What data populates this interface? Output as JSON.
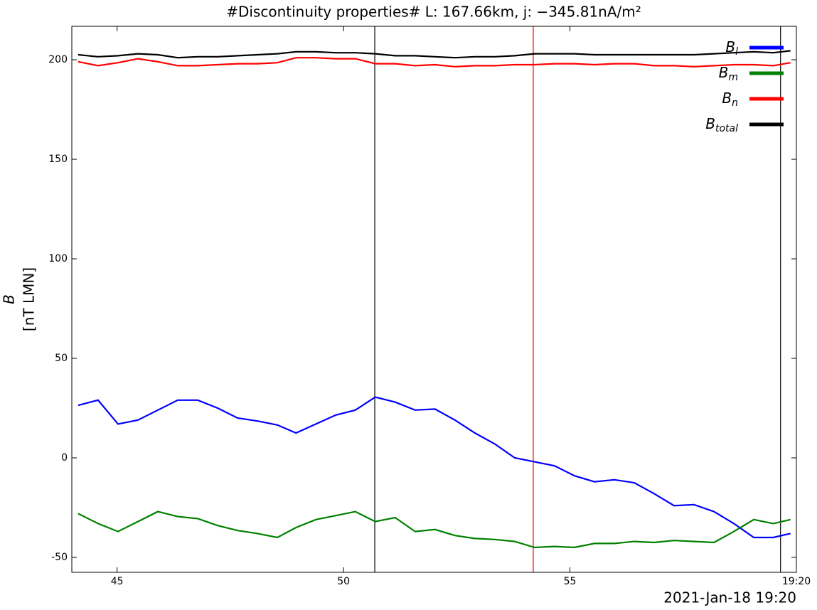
{
  "chart_data": {
    "type": "line",
    "title": "#Discontinuity properties# L: 167.66km, j: −345.81nA/m²",
    "ylabel": [
      "B",
      "[nT LMN]"
    ],
    "xlabel": "2021-Jan-18 19:20",
    "x": [
      44.14,
      44.58,
      45.02,
      45.46,
      45.9,
      46.34,
      46.78,
      47.22,
      47.66,
      48.1,
      48.54,
      48.95,
      49.39,
      49.83,
      50.26,
      50.7,
      51.14,
      51.58,
      52.02,
      52.46,
      52.9,
      53.34,
      53.78,
      54.22,
      54.66,
      55.1,
      55.54,
      55.98,
      56.42,
      56.86,
      57.3,
      57.74,
      58.18,
      58.62,
      59.06,
      59.49,
      59.87
    ],
    "series": [
      {
        "name": "Bl",
        "color": "#0000ff",
        "values": [
          26.4,
          29,
          17,
          19,
          24,
          29,
          29,
          25,
          20,
          18.5,
          16.5,
          12.5,
          17,
          21.5,
          24,
          30.5,
          28,
          24,
          24.5,
          19,
          12.5,
          7,
          0,
          -2,
          -4,
          -9,
          -12,
          -11,
          -12.5,
          -18,
          -24,
          -23.5,
          -27,
          -33,
          -40,
          -40,
          -38
        ]
      },
      {
        "name": "Bm",
        "color": "#008000",
        "values": [
          -28,
          -33,
          -37,
          -32,
          -27,
          -29.5,
          -30.5,
          -34,
          -36.5,
          -38,
          -40,
          -35,
          -31,
          -29,
          -27,
          -32,
          -30,
          -37,
          -36,
          -39,
          -40.5,
          -41,
          -42,
          -45,
          -44.5,
          -45,
          -43,
          -43,
          -42,
          -42.5,
          -41.5,
          -42,
          -42.5,
          -37,
          -31,
          -33,
          -31
        ]
      },
      {
        "name": "Bn",
        "color": "#ff0000",
        "values": [
          199,
          197,
          198.5,
          200.5,
          199,
          197,
          197,
          197.5,
          198,
          198,
          198.5,
          201,
          201,
          200.5,
          200.5,
          198,
          198,
          197,
          197.5,
          196.5,
          197,
          197,
          197.5,
          197.5,
          198,
          198,
          197.5,
          198,
          198,
          197,
          197,
          196.5,
          197,
          197.5,
          197.5,
          197,
          198.5
        ]
      },
      {
        "name": "Btotal",
        "color": "#000000",
        "values": [
          202.5,
          201.5,
          202,
          203,
          202.5,
          201,
          201.5,
          201.5,
          202,
          202.5,
          203,
          204,
          204,
          203.5,
          203.5,
          203,
          202,
          202,
          201.5,
          201,
          201.5,
          201.5,
          202,
          203,
          203,
          203,
          202.5,
          202.5,
          202.5,
          202.5,
          202.5,
          202.5,
          203,
          203.5,
          204,
          203.5,
          204.5
        ]
      }
    ],
    "vlines": [
      {
        "x": 50.69,
        "color": "#000000"
      },
      {
        "x": 54.19,
        "color": "#ff0000"
      },
      {
        "x": 59.65,
        "color": "#000000"
      }
    ],
    "xlim": [
      44,
      60
    ],
    "xticks": [
      45,
      50,
      55,
      {
        "value": 60,
        "label": "19:20"
      }
    ],
    "ylim": [
      -57.5,
      216.8
    ],
    "yticks": [
      -50,
      0,
      50,
      100,
      150,
      200
    ],
    "legend": "upper right"
  }
}
